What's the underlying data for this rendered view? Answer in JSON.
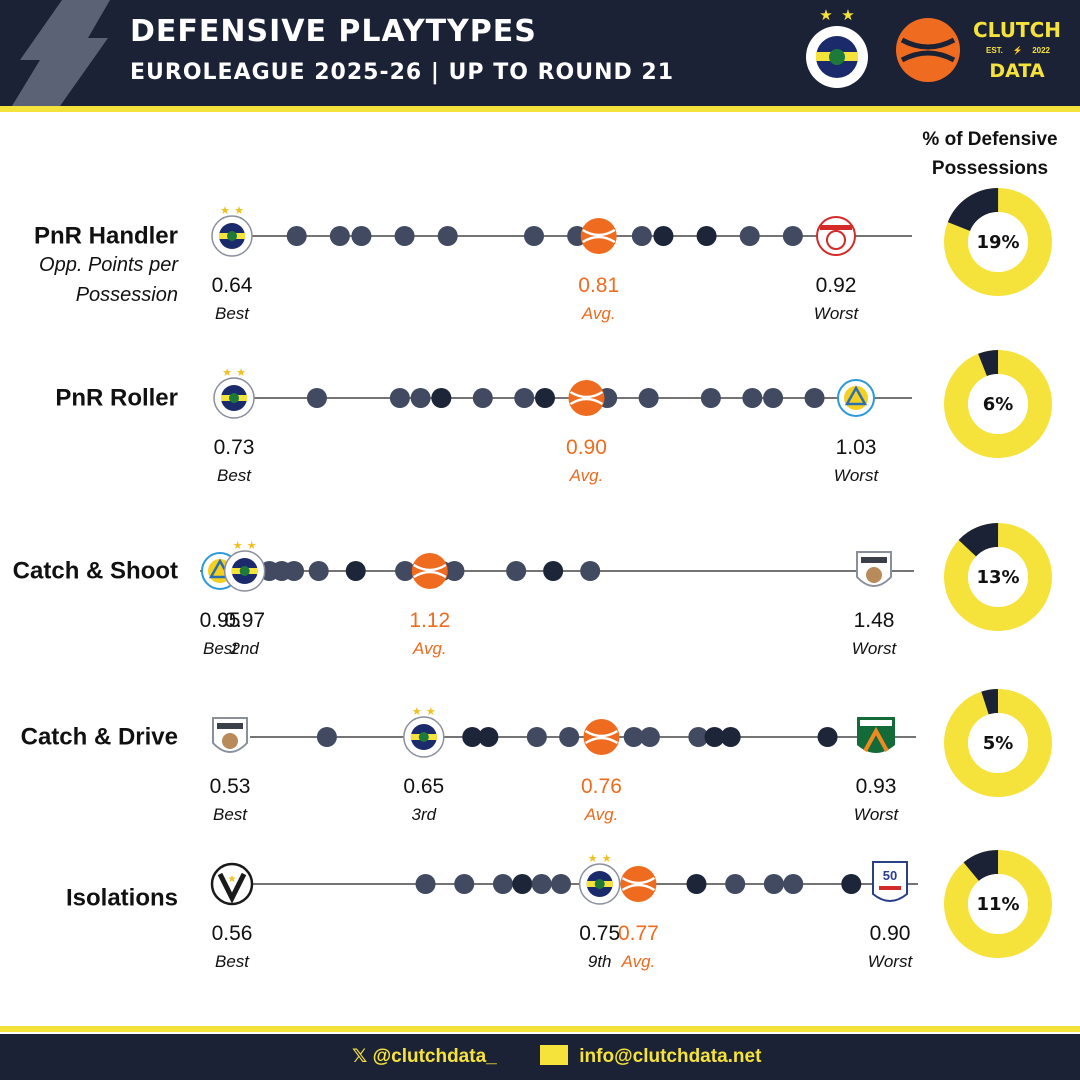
{
  "header": {
    "title": "DEFENSIVE PLAYTYPES",
    "subtitle": "EUROLEAGUE 2025-26 | UP TO ROUND 21",
    "brand_line1": "CLUTCH",
    "brand_line2": "DATA",
    "brand_est": "EST.",
    "brand_year": "2022"
  },
  "column_header": "% of Defensive Possessions",
  "footer": {
    "x_handle": "@clutchdata_",
    "email": "info@clutchdata.net"
  },
  "colors": {
    "navy": "#1b2236",
    "yellow": "#f5e23a",
    "dot": "#414a60",
    "dot_dark": "#1d2538",
    "avg_orange": "#ef6b1f",
    "text": "#111111"
  },
  "chart_data": {
    "type": "scatter",
    "metric_label_line1": "Opp. Points per",
    "metric_label_line2": "Possession",
    "rows": [
      {
        "playtype": "PnR Handler",
        "share_pct": 19,
        "share_label": "19%",
        "values": [
          0.64,
          0.67,
          0.69,
          0.7,
          0.72,
          0.74,
          0.78,
          0.8,
          0.81,
          0.83,
          0.84,
          0.86,
          0.88,
          0.9,
          0.92
        ],
        "dark_values": [
          0.84,
          0.86
        ],
        "labels": [
          {
            "value": 0.64,
            "number": "0.64",
            "tag": "Best",
            "kind": "fenerbahce"
          },
          {
            "value": 0.81,
            "number": "0.81",
            "tag": "Avg.",
            "kind": "avg"
          },
          {
            "value": 0.92,
            "number": "0.92",
            "tag": "Worst",
            "kind": "olympiacos"
          }
        ]
      },
      {
        "playtype": "PnR Roller",
        "share_pct": 6,
        "share_label": "6%",
        "values": [
          0.73,
          0.77,
          0.81,
          0.82,
          0.83,
          0.85,
          0.87,
          0.88,
          0.9,
          0.91,
          0.93,
          0.96,
          0.98,
          0.99,
          1.01,
          1.03
        ],
        "dark_values": [
          0.83,
          0.88
        ],
        "labels": [
          {
            "value": 0.73,
            "number": "0.73",
            "tag": "Best",
            "kind": "fenerbahce"
          },
          {
            "value": 0.9,
            "number": "0.90",
            "tag": "Avg.",
            "kind": "avg"
          },
          {
            "value": 1.03,
            "number": "1.03",
            "tag": "Worst",
            "kind": "maccabi"
          }
        ]
      },
      {
        "playtype": "Catch & Shoot",
        "share_pct": 13,
        "share_label": "13%",
        "values": [
          0.95,
          0.97,
          0.99,
          1.0,
          1.01,
          1.03,
          1.06,
          1.1,
          1.12,
          1.13,
          1.14,
          1.19,
          1.22,
          1.25,
          1.48
        ],
        "dark_values": [
          1.06,
          1.22
        ],
        "labels": [
          {
            "value": 0.95,
            "number": "0.95",
            "tag": "Best",
            "kind": "maccabi"
          },
          {
            "value": 0.97,
            "number": "0.97",
            "tag": "2nd",
            "kind": "fenerbahce"
          },
          {
            "value": 1.12,
            "number": "1.12",
            "tag": "Avg.",
            "kind": "avg"
          },
          {
            "value": 1.48,
            "number": "1.48",
            "tag": "Worst",
            "kind": "dubai"
          }
        ]
      },
      {
        "playtype": "Catch & Drive",
        "share_pct": 5,
        "share_label": "5%",
        "values": [
          0.53,
          0.59,
          0.65,
          0.68,
          0.69,
          0.72,
          0.74,
          0.76,
          0.78,
          0.79,
          0.82,
          0.83,
          0.84,
          0.9,
          0.93
        ],
        "dark_values": [
          0.68,
          0.69,
          0.83,
          0.84,
          0.9
        ],
        "labels": [
          {
            "value": 0.53,
            "number": "0.53",
            "tag": "Best",
            "kind": "dubai"
          },
          {
            "value": 0.65,
            "number": "0.65",
            "tag": "3rd",
            "kind": "fenerbahce"
          },
          {
            "value": 0.76,
            "number": "0.76",
            "tag": "Avg.",
            "kind": "avg"
          },
          {
            "value": 0.93,
            "number": "0.93",
            "tag": "Worst",
            "kind": "zalgiris"
          }
        ]
      },
      {
        "playtype": "Isolations",
        "share_pct": 11,
        "share_label": "11%",
        "values": [
          0.56,
          0.66,
          0.68,
          0.7,
          0.71,
          0.72,
          0.73,
          0.75,
          0.77,
          0.8,
          0.82,
          0.84,
          0.85,
          0.88,
          0.9
        ],
        "dark_values": [
          0.71,
          0.8,
          0.88
        ],
        "labels": [
          {
            "value": 0.56,
            "number": "0.56",
            "tag": "Best",
            "kind": "virtus"
          },
          {
            "value": 0.75,
            "number": "0.75",
            "tag": "9th",
            "kind": "fenerbahce"
          },
          {
            "value": 0.77,
            "number": "0.77",
            "tag": "Avg.",
            "kind": "avg"
          },
          {
            "value": 0.9,
            "number": "0.90",
            "tag": "Worst",
            "kind": "efes"
          }
        ]
      }
    ]
  }
}
